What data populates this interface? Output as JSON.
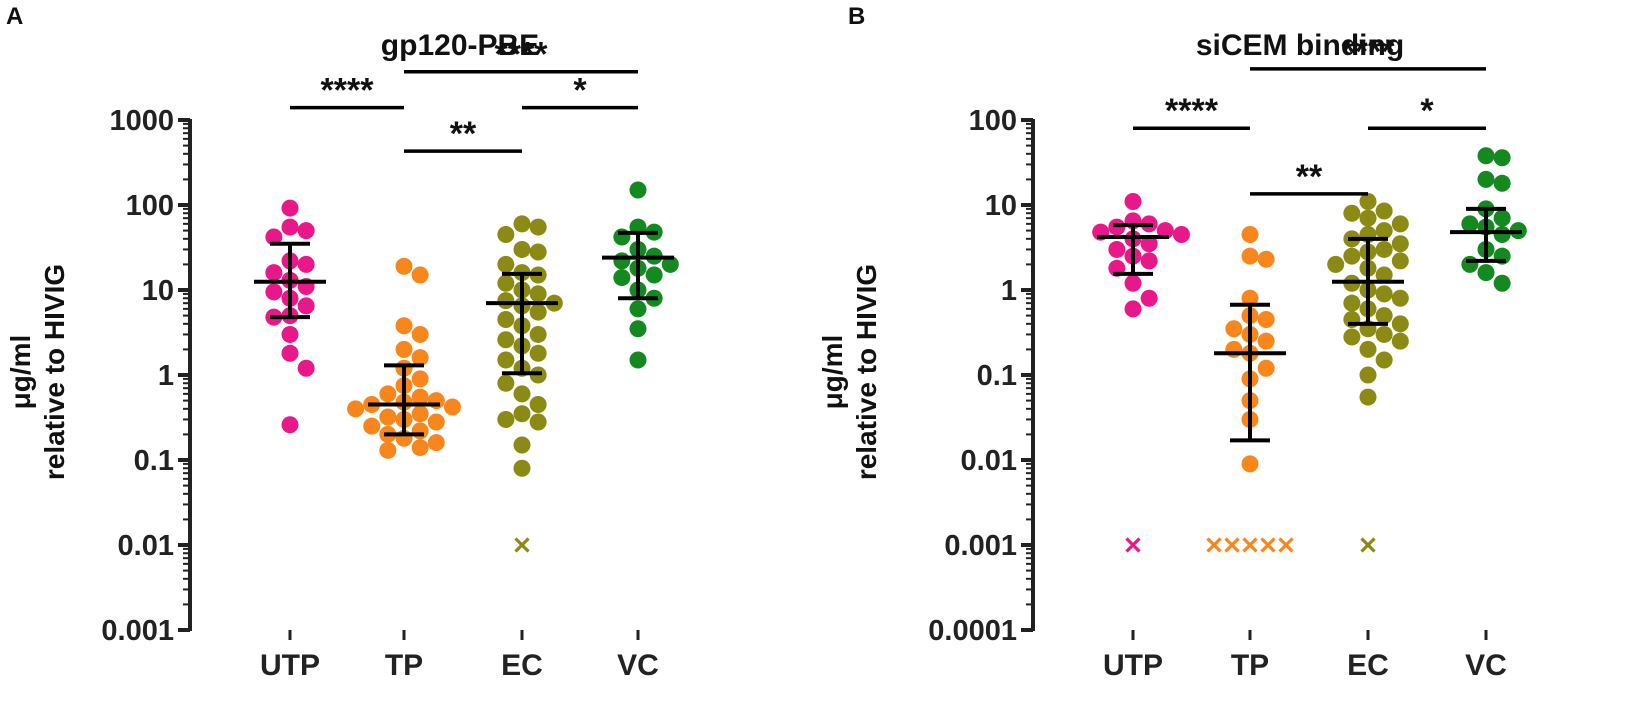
{
  "chart_data": [
    {
      "type": "scatter",
      "panel": "A",
      "title": "gp120-PBE",
      "ylabel": [
        "μg/ml",
        "relative to HIVIG"
      ],
      "yscale": "log",
      "ylim": [
        0.001,
        1000
      ],
      "yticks": [
        {
          "value": 0.001,
          "label": "0.001"
        },
        {
          "value": 0.01,
          "label": "0.01"
        },
        {
          "value": 0.1,
          "label": "0.1"
        },
        {
          "value": 1,
          "label": "1"
        },
        {
          "value": 10,
          "label": "10"
        },
        {
          "value": 100,
          "label": "100"
        },
        {
          "value": 1000,
          "label": "1000"
        }
      ],
      "categories": [
        "UTP",
        "TP",
        "EC",
        "VC"
      ],
      "groups": [
        {
          "name": "UTP",
          "color": "#e8178a",
          "points": [
            92,
            55,
            50,
            42,
            22,
            20,
            16,
            13,
            11,
            9.5,
            8,
            6.5,
            5,
            4.8,
            3,
            1.8,
            1.2,
            0.26
          ],
          "median": 12.5,
          "err_low": 4.8,
          "err_high": 35,
          "undetectable": []
        },
        {
          "name": "TP",
          "color": "#f7861c",
          "points": [
            19,
            15,
            3.8,
            3.0,
            2.0,
            1.6,
            1.2,
            0.9,
            0.75,
            0.6,
            0.55,
            0.5,
            0.48,
            0.45,
            0.42,
            0.4,
            0.35,
            0.32,
            0.3,
            0.28,
            0.25,
            0.22,
            0.2,
            0.18,
            0.16,
            0.14,
            0.13
          ],
          "median": 0.45,
          "err_low": 0.2,
          "err_high": 1.3,
          "undetectable": []
        },
        {
          "name": "EC",
          "color": "#8b8a14",
          "points": [
            60,
            55,
            45,
            30,
            28,
            20,
            16,
            15,
            12,
            10,
            9,
            7.5,
            7,
            6.5,
            5.5,
            4.5,
            3.8,
            3.0,
            2.6,
            2.2,
            1.8,
            1.5,
            1.2,
            1.0,
            0.8,
            0.6,
            0.45,
            0.35,
            0.3,
            0.28,
            0.15,
            0.08
          ],
          "median": 7,
          "err_low": 1.05,
          "err_high": 15.5,
          "undetectable": [
            0.01
          ]
        },
        {
          "name": "VC",
          "color": "#13891f",
          "points": [
            150,
            55,
            48,
            42,
            30,
            25,
            22,
            20,
            18,
            15,
            14,
            10,
            8,
            6,
            3.5,
            1.5
          ],
          "median": 24,
          "err_low": 8,
          "err_high": 47,
          "undetectable": []
        }
      ],
      "significance": [
        {
          "from": "UTP",
          "to": "TP",
          "y": 1400,
          "label": "****"
        },
        {
          "from": "TP",
          "to": "EC",
          "y": 430,
          "label": "**"
        },
        {
          "from": "TP",
          "to": "VC",
          "y": 3700,
          "label": "****"
        },
        {
          "from": "EC",
          "to": "VC",
          "y": 1400,
          "label": "*"
        }
      ]
    },
    {
      "type": "scatter",
      "panel": "B",
      "title": "siCEM binding",
      "ylabel": [
        "μg/ml",
        "relative to HIVIG"
      ],
      "yscale": "log",
      "ylim": [
        0.0001,
        100
      ],
      "yticks": [
        {
          "value": 0.0001,
          "label": "0.0001"
        },
        {
          "value": 0.001,
          "label": "0.001"
        },
        {
          "value": 0.01,
          "label": "0.01"
        },
        {
          "value": 0.1,
          "label": "0.1"
        },
        {
          "value": 1,
          "label": "1"
        },
        {
          "value": 10,
          "label": "10"
        },
        {
          "value": 100,
          "label": "100"
        }
      ],
      "categories": [
        "UTP",
        "TP",
        "EC",
        "VC"
      ],
      "groups": [
        {
          "name": "UTP",
          "color": "#e8178a",
          "points": [
            11,
            6.5,
            6,
            5.5,
            5,
            4.8,
            4.5,
            4,
            3.5,
            3,
            2.5,
            2.2,
            1.8,
            1.2,
            0.8,
            0.6
          ],
          "median": 4.2,
          "err_low": 1.55,
          "err_high": 5.8,
          "undetectable": [
            0.001
          ]
        },
        {
          "name": "TP",
          "color": "#f7861c",
          "points": [
            4.5,
            2.5,
            2.3,
            0.8,
            0.5,
            0.45,
            0.35,
            0.3,
            0.25,
            0.2,
            0.18,
            0.12,
            0.09,
            0.05,
            0.03,
            0.009
          ],
          "median": 0.18,
          "err_low": 0.017,
          "err_high": 0.67,
          "undetectable": [
            0.001,
            0.001,
            0.001,
            0.001,
            0.001
          ]
        },
        {
          "name": "EC",
          "color": "#8b8a14",
          "points": [
            11,
            8.5,
            8,
            7,
            6,
            5,
            4.5,
            4,
            3.5,
            3,
            2.8,
            2.5,
            2.2,
            2.0,
            1.8,
            1.5,
            1.2,
            1.0,
            0.9,
            0.8,
            0.7,
            0.6,
            0.5,
            0.45,
            0.4,
            0.35,
            0.3,
            0.28,
            0.25,
            0.2,
            0.15,
            0.1,
            0.055
          ],
          "median": 1.25,
          "err_low": 0.4,
          "err_high": 4.0,
          "undetectable": [
            0.001
          ]
        },
        {
          "name": "VC",
          "color": "#13891f",
          "points": [
            38,
            36,
            20,
            18,
            9,
            7,
            6,
            5.5,
            5,
            4.5,
            3,
            2.5,
            2.0,
            1.6,
            1.2
          ],
          "median": 4.8,
          "err_low": 2.2,
          "err_high": 9.0,
          "undetectable": []
        }
      ],
      "significance": [
        {
          "from": "UTP",
          "to": "TP",
          "y": 80,
          "label": "****"
        },
        {
          "from": "TP",
          "to": "EC",
          "y": 13.5,
          "label": "**"
        },
        {
          "from": "TP",
          "to": "VC",
          "y": 400,
          "label": "****"
        },
        {
          "from": "EC",
          "to": "VC",
          "y": 80,
          "label": "*"
        }
      ]
    }
  ]
}
